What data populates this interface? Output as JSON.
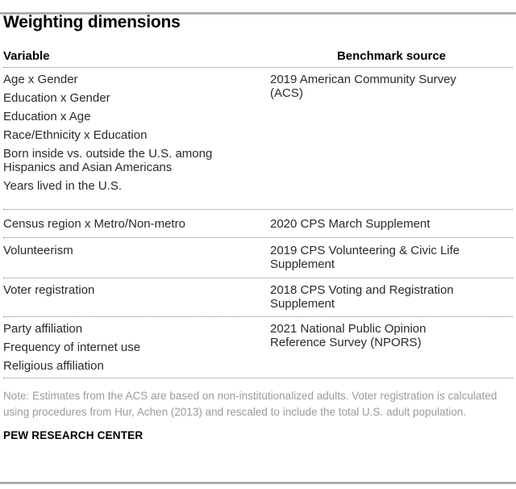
{
  "chart_data": {
    "type": "table",
    "title": "Weighting dimensions",
    "columns": [
      "Variable",
      "Benchmark source"
    ],
    "rows": [
      {
        "variables": [
          "Age x Gender",
          "Education x Gender",
          "Education x Age",
          "Race/Ethnicity x Education",
          "Born inside vs. outside the U.S. among Hispanics and Asian Americans",
          "Years lived in the U.S."
        ],
        "benchmark_source": "2019 American Community Survey (ACS)"
      },
      {
        "variables": [
          "Census region x Metro/Non-metro"
        ],
        "benchmark_source": "2020 CPS March Supplement"
      },
      {
        "variables": [
          "Volunteerism"
        ],
        "benchmark_source": "2019 CPS Volunteering & Civic Life Supplement"
      },
      {
        "variables": [
          "Voter registration"
        ],
        "benchmark_source": "2018 CPS Voting and Registration Supplement"
      },
      {
        "variables": [
          "Party affiliation",
          "Frequency of internet use",
          "Religious affiliation"
        ],
        "benchmark_source": "2021 National Public Opinion Reference Survey (NPORS)"
      }
    ],
    "note": "Note: Estimates from the ACS are based on non-institutionalized adults. Voter registration is calculated using procedures from Hur, Achen (2013) and rescaled to include the total U.S. adult population.",
    "source_label": "PEW RESEARCH CENTER",
    "layout": {
      "grid": "off",
      "legend": "none",
      "separator_style": "dotted"
    }
  },
  "colors": {
    "background": "#ffffff",
    "title_text": "#000000",
    "body_text": "#2a2a2a",
    "note_text": "#9b9b9b",
    "horizontal_rule": "#aeaeae",
    "dotted_separator": "#858585"
  }
}
